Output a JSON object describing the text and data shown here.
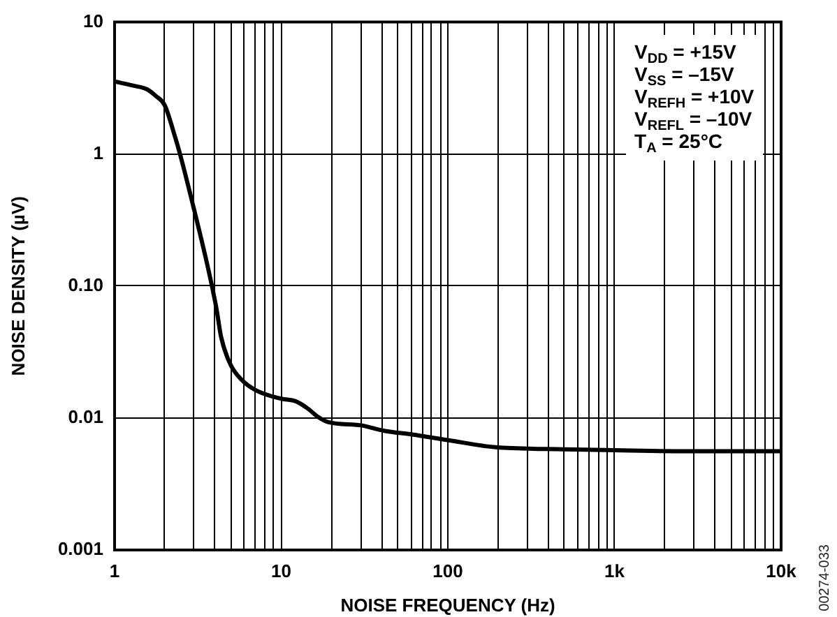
{
  "chart_data": {
    "type": "line",
    "xlabel": "NOISE FREQUENCY (Hz)",
    "ylabel": "NOISE DENSITY (µV)",
    "x": [
      1,
      1.29,
      1.56,
      1.77,
      2,
      2.29,
      2.47,
      2.97,
      3.48,
      3.84,
      4.09,
      4.36,
      4.96,
      5.83,
      7.07,
      10,
      12.2,
      14.3,
      16.8,
      19.2,
      30,
      41.5,
      61,
      100,
      194,
      500,
      1000,
      3000,
      10000
    ],
    "series": [
      {
        "color": "#000000",
        "values": [
          3.55,
          3.3,
          3.1,
          2.75,
          2.34,
          1.39,
          1.0,
          0.4,
          0.175,
          0.1,
          0.067,
          0.041,
          0.0254,
          0.0193,
          0.0162,
          0.014,
          0.0134,
          0.0119,
          0.0101,
          0.0093,
          0.0088,
          0.008,
          0.0075,
          0.0068,
          0.006,
          0.0058,
          0.0057,
          0.0056,
          0.0056
        ]
      }
    ],
    "log": "xy",
    "xlim": [
      1,
      10000
    ],
    "ylim": [
      0.001,
      10
    ],
    "xticks": [
      1,
      {
        "value": 2,
        "label": null
      },
      {
        "value": 3,
        "label": null
      },
      {
        "value": 4,
        "label": null
      },
      {
        "value": 5,
        "label": null
      },
      {
        "value": 6,
        "label": null
      },
      {
        "value": 7,
        "label": null
      },
      {
        "value": 8,
        "label": null
      },
      {
        "value": 9,
        "label": null
      },
      10,
      {
        "value": 20,
        "label": null
      },
      {
        "value": 30,
        "label": null
      },
      {
        "value": 40,
        "label": null
      },
      {
        "value": 50,
        "label": null
      },
      {
        "value": 60,
        "label": null
      },
      {
        "value": 70,
        "label": null
      },
      {
        "value": 80,
        "label": null
      },
      {
        "value": 90,
        "label": null
      },
      100,
      {
        "value": 200,
        "label": null
      },
      {
        "value": 300,
        "label": null
      },
      {
        "value": 400,
        "label": null
      },
      {
        "value": 500,
        "label": null
      },
      {
        "value": 600,
        "label": null
      },
      {
        "value": 700,
        "label": null
      },
      {
        "value": 800,
        "label": null
      },
      {
        "value": 900,
        "label": null
      },
      {
        "value": 1000,
        "label": "1k"
      },
      {
        "value": 2000,
        "label": null
      },
      {
        "value": 3000,
        "label": null
      },
      {
        "value": 4000,
        "label": null
      },
      {
        "value": 5000,
        "label": null
      },
      {
        "value": 6000,
        "label": null
      },
      {
        "value": 7000,
        "label": null
      },
      {
        "value": 8000,
        "label": null
      },
      {
        "value": 9000,
        "label": null
      },
      {
        "value": 10000,
        "label": "10k"
      }
    ],
    "yticks": [
      0.001,
      0.01,
      {
        "value": 0.1,
        "label": "0.10"
      },
      1,
      10
    ],
    "grid": true,
    "annotations": [
      "V$_{DD}$ = +15V",
      "V$_{SS}$ = –15V",
      "V$_{REFH}$ = +10V",
      "V$_{REFL}$ = –10V",
      "T$_{A}$ = 25°C",
      "00274-033"
    ]
  }
}
